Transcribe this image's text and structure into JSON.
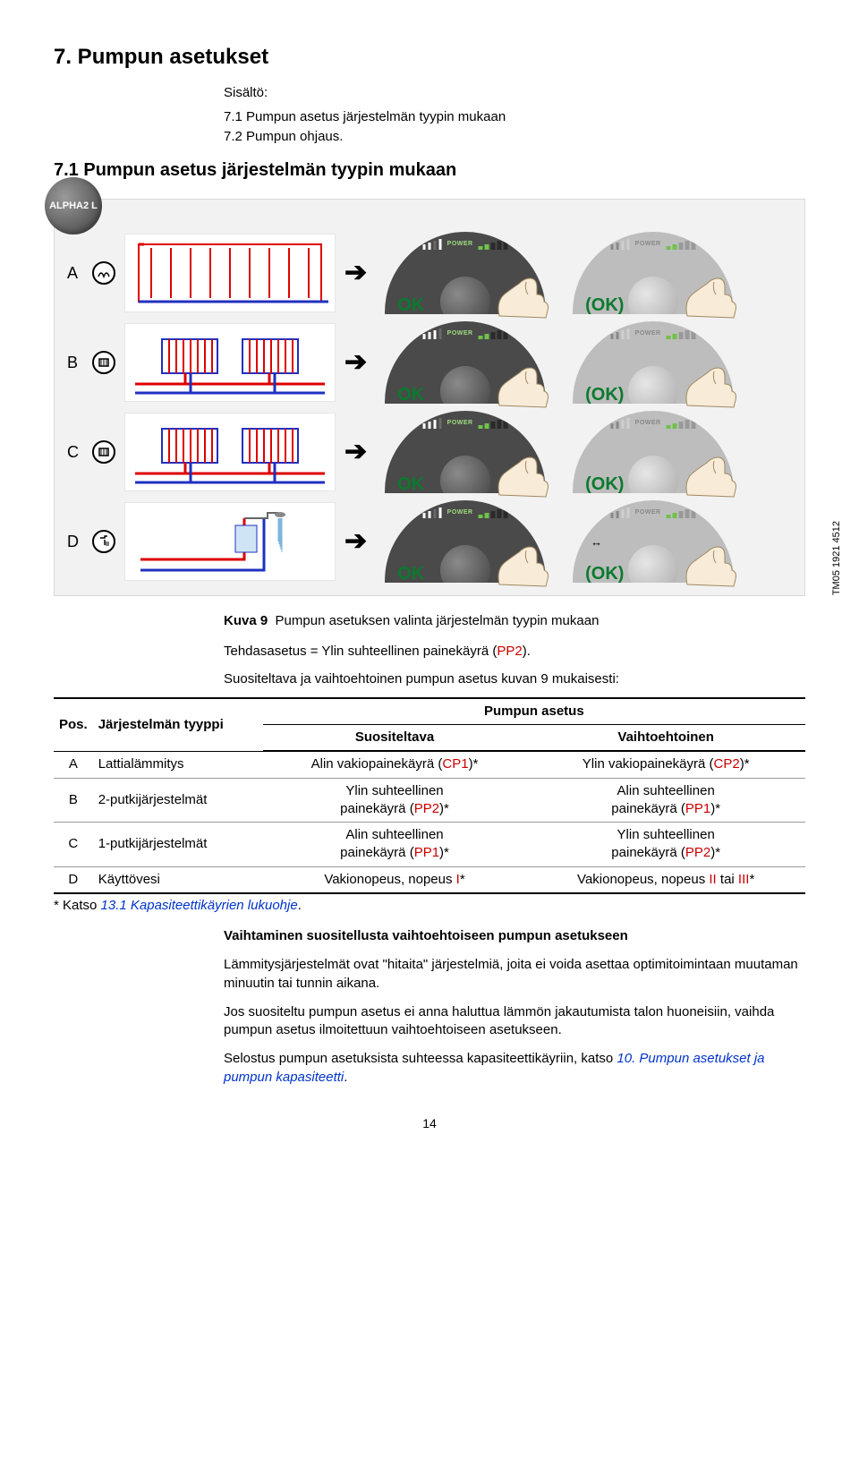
{
  "heading1": "7. Pumpun asetukset",
  "sisalto_label": "Sisältö:",
  "toc": [
    "7.1 Pumpun asetus järjestelmän tyypin mukaan",
    "7.2 Pumpun ohjaus."
  ],
  "heading2": "7.1 Pumpun asetus järjestelmän tyypin mukaan",
  "alpha_badge": "ALPHA2 L",
  "tm_code": "TM05 1921 4512",
  "diagram": {
    "ok": "OK",
    "ok_paren": "(OK)",
    "power": "POWER",
    "rows": [
      {
        "label": "A",
        "bars_dark": [
          true,
          true,
          false,
          true
        ],
        "bars_grey": [
          true,
          true,
          false,
          false
        ]
      },
      {
        "label": "B",
        "bars_dark": [
          true,
          true,
          true,
          false
        ],
        "bars_grey": [
          true,
          true,
          false,
          false
        ]
      },
      {
        "label": "C",
        "bars_dark": [
          true,
          true,
          true,
          false
        ],
        "bars_grey": [
          true,
          true,
          false,
          false
        ]
      },
      {
        "label": "D",
        "bars_dark": [
          true,
          true,
          false,
          true
        ],
        "bars_grey": [
          true,
          true,
          false,
          false
        ],
        "extra_icon": true
      }
    ],
    "colors": {
      "bg": "#f2f2f2",
      "dial_dark": "#4a4a4a",
      "dial_grey": "#bdbdbd",
      "green_text": "#0b7a2e",
      "bar_green": "#8fd46a",
      "bar_grey": "#888888",
      "ind_green": "#6fc24a",
      "ind_dark": "#2a2a2a"
    }
  },
  "caption_prefix": "Kuva 9",
  "caption_text": "Pumpun asetuksen valinta järjestelmän tyypin mukaan",
  "factory_line_pre": "Tehdasasetus = Ylin suhteellinen painekäyrä (",
  "factory_line_pp2": "PP2",
  "factory_line_post": ").",
  "rec_line_pre": "Suositeltava ja vaihtoehtoinen pumpun asetus kuvan ",
  "rec_line_num": "9",
  "rec_line_post": " mukaisesti:",
  "table": {
    "head_pos": "Pos.",
    "head_sys": "Järjestelmän tyyppi",
    "head_pump": "Pumpun asetus",
    "head_rec": "Suositeltava",
    "head_alt": "Vaihtoehtoinen",
    "rows": [
      {
        "pos": "A",
        "sys": "Lattialämmitys",
        "rec_pre": "Alin vakiopainekäyrä (",
        "rec_code": "CP1",
        "rec_color": "red",
        "rec_post": ")*",
        "alt_pre": "Ylin vakiopainekäyrä (",
        "alt_code": "CP2",
        "alt_color": "red",
        "alt_post": ")*"
      },
      {
        "pos": "B",
        "sys": "2-putkijärjestelmät",
        "rec_l1": "Ylin suhteellinen",
        "rec_l2_pre": "painekäyrä (",
        "rec_code": "PP2",
        "rec_color": "red",
        "rec_l2_post": ")*",
        "alt_l1": "Alin suhteellinen",
        "alt_l2_pre": "painekäyrä (",
        "alt_code": "PP1",
        "alt_color": "red",
        "alt_l2_post": ")*"
      },
      {
        "pos": "C",
        "sys": "1-putkijärjestelmät",
        "rec_l1": "Alin suhteellinen",
        "rec_l2_pre": "painekäyrä (",
        "rec_code": "PP1",
        "rec_color": "red",
        "rec_l2_post": ")*",
        "alt_l1": "Ylin suhteellinen",
        "alt_l2_pre": "painekäyrä (",
        "alt_code": "PP2",
        "alt_color": "red",
        "alt_l2_post": ")*"
      },
      {
        "pos": "D",
        "sys": "Käyttövesi",
        "rec_pre": "Vakionopeus, nopeus ",
        "rec_code": "I",
        "rec_color": "red",
        "rec_post": "*",
        "alt_pre": "Vakionopeus, nopeus ",
        "alt_code": "II",
        "alt_color": "red",
        "alt_mid": " tai ",
        "alt_code2": "III",
        "alt_post": "*"
      }
    ],
    "footnote_pre": "* Katso ",
    "footnote_link": "13.1 Kapasiteettikäyrien lukuohje",
    "footnote_post": "."
  },
  "body": {
    "h": "Vaihtaminen suositellusta vaihtoehtoiseen pumpun asetukseen",
    "p1": "Lämmitysjärjestelmät ovat \"hitaita\" järjestelmiä, joita ei voida asettaa optimitoimintaan muutaman minuutin tai tunnin aikana.",
    "p2": "Jos suositeltu pumpun asetus ei anna haluttua lämmön jakautumista talon huoneisiin, vaihda pumpun asetus ilmoitettuun vaihtoehtoiseen asetukseen.",
    "p3_pre": "Selostus pumpun asetuksista suhteessa kapasiteettikäyriin, katso ",
    "p3_link": "10. Pumpun asetukset ja pumpun kapasiteetti",
    "p3_post": "."
  },
  "page_number": "14"
}
